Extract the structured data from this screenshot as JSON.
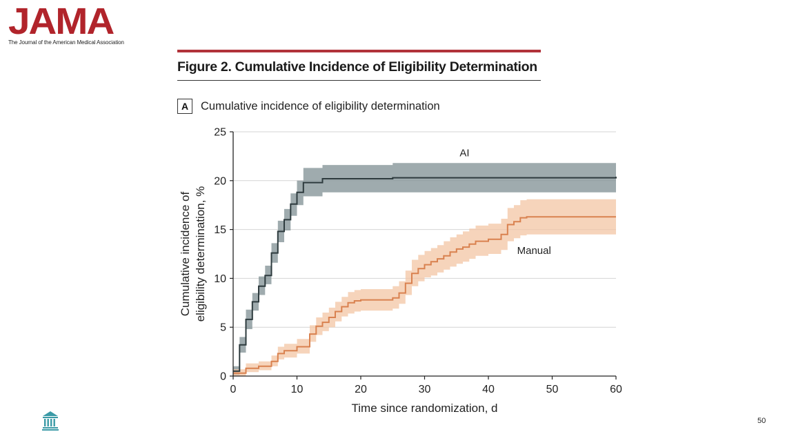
{
  "logo": {
    "wordmark": "JAMA",
    "subtitle": "The Journal of the American Medical Association"
  },
  "figure": {
    "title": "Figure 2. Cumulative Incidence of Eligibility Determination"
  },
  "panel": {
    "letter": "A",
    "title": "Cumulative incidence of eligibility determination"
  },
  "chart_data": {
    "type": "line",
    "title": "Cumulative incidence of eligibility determination",
    "xlabel": "Time since randomization, d",
    "ylabel": "Cumulative incidence of eligibility determination, %",
    "xlim": [
      0,
      60
    ],
    "ylim": [
      0,
      25
    ],
    "xticks": [
      0,
      10,
      20,
      30,
      40,
      50,
      60
    ],
    "yticks": [
      0,
      5,
      10,
      15,
      20,
      25
    ],
    "grid": "horizontal",
    "step": true,
    "series": [
      {
        "name": "AI",
        "color": "#2e3b3e",
        "band_color": "#7f8f93",
        "x": [
          0,
          1,
          2,
          3,
          4,
          5,
          6,
          7,
          8,
          9,
          10,
          11,
          14,
          25,
          40,
          60
        ],
        "y": [
          0.5,
          3.2,
          5.8,
          7.6,
          9.2,
          10.3,
          12.6,
          14.8,
          16.0,
          17.6,
          18.8,
          19.8,
          20.2,
          20.3,
          20.3,
          20.4
        ],
        "lower": [
          0.1,
          2.4,
          4.8,
          6.7,
          8.3,
          9.4,
          11.6,
          13.7,
          14.9,
          16.4,
          17.5,
          18.4,
          18.8,
          18.8,
          18.8,
          18.8
        ],
        "upper": [
          1.0,
          4.0,
          6.8,
          8.5,
          10.2,
          11.3,
          13.6,
          15.9,
          17.1,
          18.7,
          20.0,
          21.3,
          21.6,
          21.8,
          21.8,
          22.0
        ]
      },
      {
        "name": "Manual",
        "color": "#d9814f",
        "band_color": "#f3c6a4",
        "x": [
          0,
          2,
          4,
          6,
          7,
          8,
          10,
          12,
          13,
          14,
          15,
          16,
          17,
          18,
          19,
          20,
          23,
          25,
          26,
          27,
          28,
          29,
          30,
          31,
          32,
          33,
          34,
          35,
          36,
          37,
          38,
          40,
          42,
          43,
          44,
          45,
          46,
          50,
          60
        ],
        "y": [
          0.3,
          0.8,
          1.0,
          1.5,
          2.3,
          2.6,
          3.0,
          4.3,
          5.1,
          5.5,
          6.0,
          6.6,
          7.1,
          7.5,
          7.7,
          7.8,
          7.8,
          8.0,
          8.5,
          9.5,
          10.5,
          11.0,
          11.4,
          11.7,
          12.0,
          12.3,
          12.7,
          13.0,
          13.2,
          13.5,
          13.8,
          14.0,
          14.5,
          15.5,
          15.8,
          16.2,
          16.3,
          16.3,
          16.3
        ],
        "lower": [
          0.0,
          0.4,
          0.6,
          1.0,
          1.7,
          1.9,
          2.3,
          3.5,
          4.2,
          4.6,
          5.0,
          5.6,
          6.1,
          6.4,
          6.6,
          6.7,
          6.7,
          6.9,
          7.4,
          8.3,
          9.2,
          9.7,
          10.1,
          10.3,
          10.6,
          10.9,
          11.2,
          11.5,
          11.7,
          12.0,
          12.3,
          12.5,
          12.9,
          13.8,
          14.1,
          14.4,
          14.5,
          14.5,
          14.5
        ],
        "upper": [
          0.7,
          1.3,
          1.5,
          2.1,
          3.0,
          3.3,
          3.8,
          5.2,
          6.0,
          6.5,
          7.0,
          7.6,
          8.1,
          8.6,
          8.8,
          8.9,
          8.9,
          9.2,
          9.7,
          10.8,
          11.9,
          12.4,
          12.8,
          13.1,
          13.4,
          13.8,
          14.2,
          14.5,
          14.8,
          15.1,
          15.4,
          15.6,
          16.1,
          17.2,
          17.5,
          18.0,
          18.1,
          18.1,
          18.1
        ]
      }
    ],
    "annotations": [
      {
        "text": "AI",
        "x": 35.5,
        "y": 22.5
      },
      {
        "text": "Manual",
        "x": 44.5,
        "y": 12.5
      }
    ]
  },
  "footer": {
    "page_number": "50",
    "icon": "institution-pillars-icon"
  }
}
